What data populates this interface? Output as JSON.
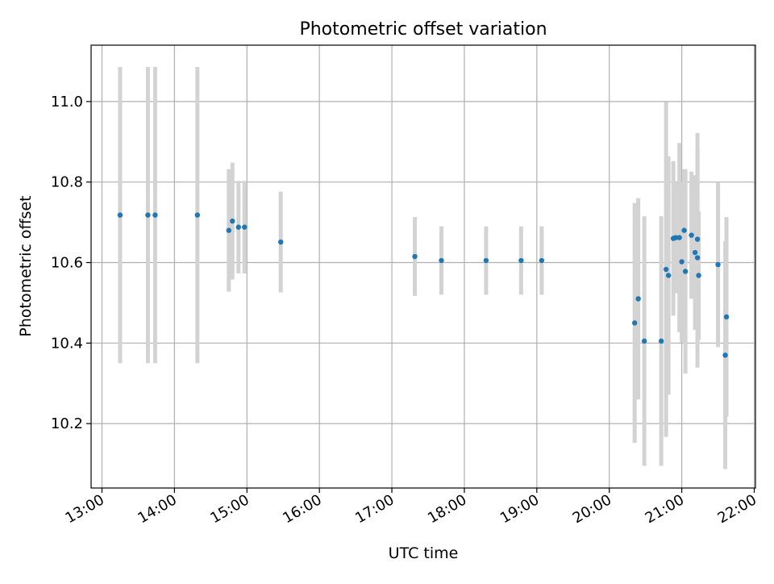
{
  "chart_data": {
    "type": "scatter",
    "title": "Photometric offset variation",
    "xlabel": "UTC time",
    "ylabel": "Photometric offset",
    "x_ticks": [
      "13:00",
      "14:00",
      "15:00",
      "16:00",
      "17:00",
      "18:00",
      "19:00",
      "20:00",
      "21:00",
      "22:00"
    ],
    "y_ticks": [
      "10.2",
      "10.4",
      "10.6",
      "10.8",
      "11.0"
    ],
    "xlim": [
      "12:51",
      "22:01"
    ],
    "ylim": [
      10.04,
      11.14
    ],
    "grid": true,
    "colors": {
      "point": "#1f77b4",
      "errorbar": "#d3d3d3",
      "grid": "#b0b0b0"
    },
    "points": [
      {
        "x": "13:15",
        "y": 10.718,
        "err": 0.368
      },
      {
        "x": "13:38",
        "y": 10.718,
        "err": 0.368
      },
      {
        "x": "13:44",
        "y": 10.718,
        "err": 0.368
      },
      {
        "x": "14:19",
        "y": 10.718,
        "err": 0.368
      },
      {
        "x": "14:45",
        "y": 10.68,
        "err": 0.152
      },
      {
        "x": "14:48",
        "y": 10.703,
        "err": 0.145
      },
      {
        "x": "14:53",
        "y": 10.688,
        "err": 0.115
      },
      {
        "x": "14:58",
        "y": 10.688,
        "err": 0.115
      },
      {
        "x": "15:28",
        "y": 10.651,
        "err": 0.125
      },
      {
        "x": "17:19",
        "y": 10.615,
        "err": 0.098
      },
      {
        "x": "17:41",
        "y": 10.605,
        "err": 0.085
      },
      {
        "x": "18:18",
        "y": 10.605,
        "err": 0.085
      },
      {
        "x": "18:47",
        "y": 10.605,
        "err": 0.085
      },
      {
        "x": "19:04",
        "y": 10.605,
        "err": 0.085
      },
      {
        "x": "20:21",
        "y": 10.45,
        "err": 0.298
      },
      {
        "x": "20:24",
        "y": 10.51,
        "err": 0.25
      },
      {
        "x": "20:29",
        "y": 10.405,
        "err": 0.31
      },
      {
        "x": "20:43",
        "y": 10.405,
        "err": 0.31
      },
      {
        "x": "20:47",
        "y": 10.583,
        "err": 0.416
      },
      {
        "x": "20:49",
        "y": 10.568,
        "err": 0.296
      },
      {
        "x": "20:53",
        "y": 10.66,
        "err": 0.192
      },
      {
        "x": "20:55",
        "y": 10.662,
        "err": 0.138
      },
      {
        "x": "20:58",
        "y": 10.662,
        "err": 0.235
      },
      {
        "x": "21:00",
        "y": 10.602,
        "err": 0.2
      },
      {
        "x": "21:02",
        "y": 10.68,
        "err": 0.152
      },
      {
        "x": "21:03",
        "y": 10.578,
        "err": 0.254
      },
      {
        "x": "21:08",
        "y": 10.668,
        "err": 0.158
      },
      {
        "x": "21:11",
        "y": 10.625,
        "err": 0.192
      },
      {
        "x": "21:13",
        "y": 10.658,
        "err": 0.264
      },
      {
        "x": "21:13",
        "y": 10.612,
        "err": 0.273
      },
      {
        "x": "21:14",
        "y": 10.568,
        "err": 0.16
      },
      {
        "x": "21:30",
        "y": 10.595,
        "err": 0.205
      },
      {
        "x": "21:36",
        "y": 10.37,
        "err": 0.283
      },
      {
        "x": "21:37",
        "y": 10.465,
        "err": 0.248
      }
    ]
  }
}
